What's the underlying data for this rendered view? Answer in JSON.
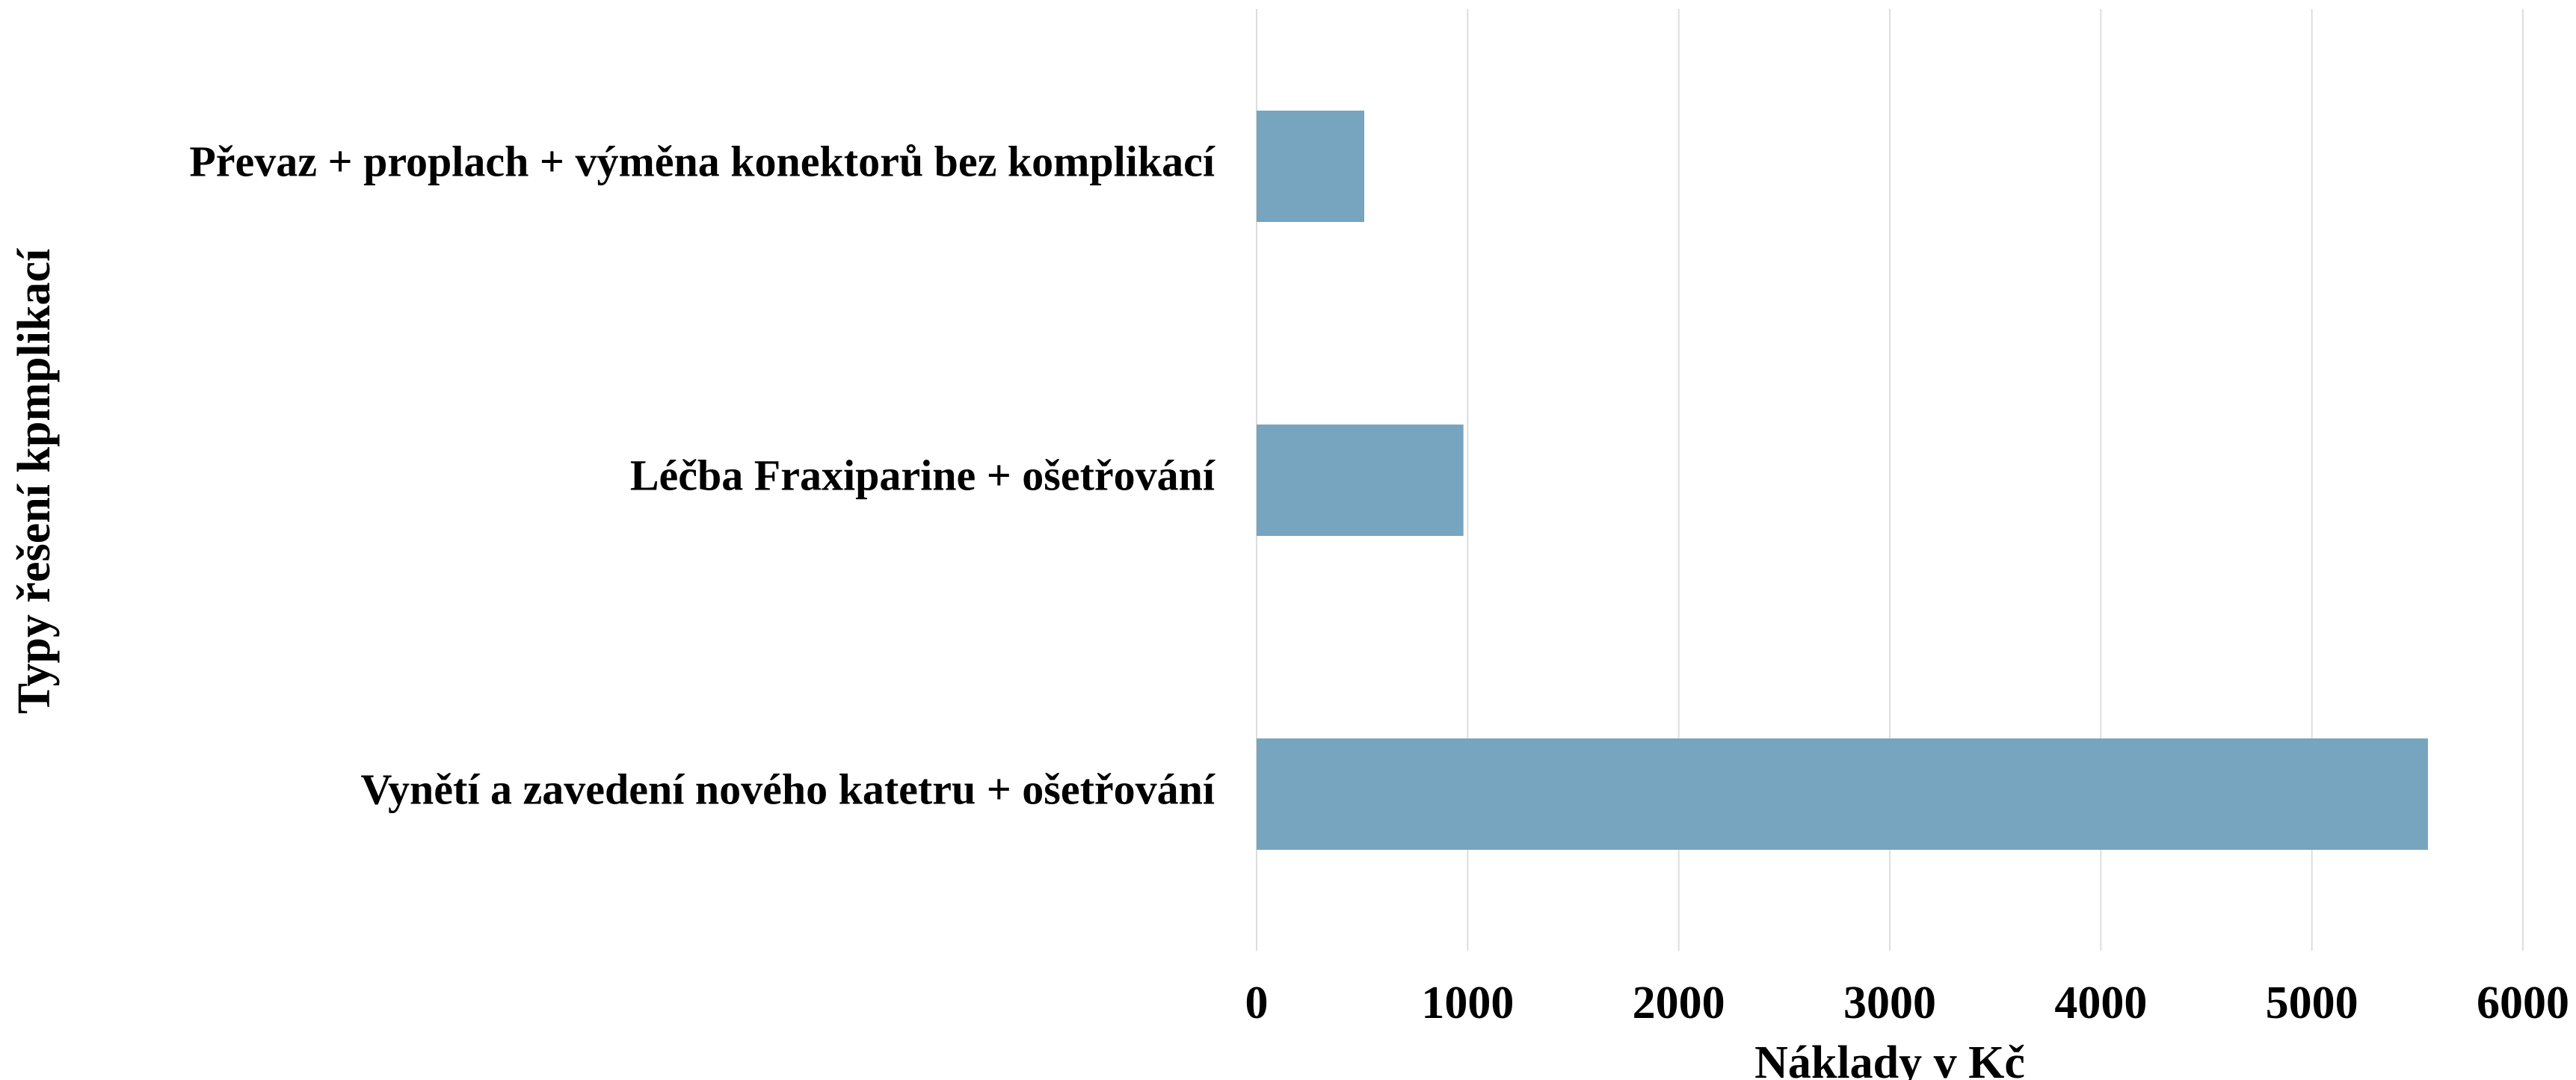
{
  "chart_data": {
    "type": "hbar",
    "categories": [
      "Převaz + proplach + výměna konektorů bez komplikací",
      "Léčba Fraxiparine + ošetřování",
      "Vynětí a zavedení nového katetru + ošetřování"
    ],
    "values": [
      510,
      980,
      5550
    ],
    "color": "#77a4be",
    "xlabel": "Náklady v Kč",
    "ylabel": "Typy řešení kpmplikací",
    "xlim": [
      0,
      6000
    ],
    "xticks": [
      0,
      1000,
      2000,
      3000,
      4000,
      5000,
      6000
    ],
    "grid": true
  }
}
